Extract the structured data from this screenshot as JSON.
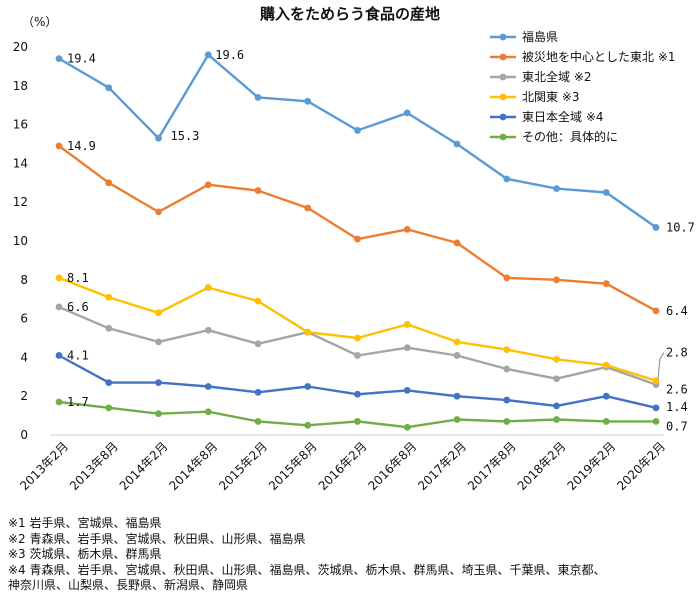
{
  "chart_data": {
    "type": "line",
    "title": "購入をためらう食品の産地",
    "ylabel": "（%）",
    "xlabel": "",
    "ylim": [
      0,
      20
    ],
    "yticks": [
      0,
      2,
      4,
      6,
      8,
      10,
      12,
      14,
      16,
      18,
      20
    ],
    "grid": false,
    "legend_position": "top-right",
    "categories": [
      "2013年2月",
      "2013年8月",
      "2014年2月",
      "2014年8月",
      "2015年2月",
      "2015年8月",
      "2016年2月",
      "2016年8月",
      "2017年2月",
      "2017年8月",
      "2018年2月",
      "2019年2月",
      "2020年2月"
    ],
    "series": [
      {
        "name": "福島県",
        "color": "#5B9BD5",
        "values": [
          19.4,
          17.9,
          15.3,
          19.6,
          17.4,
          17.2,
          15.7,
          16.6,
          15.0,
          13.2,
          12.7,
          12.5,
          10.7
        ],
        "labels": [
          {
            "index": 0,
            "text": "19.4"
          },
          {
            "index": 2,
            "text": "15.3"
          },
          {
            "index": 3,
            "text": "19.6"
          },
          {
            "index": 12,
            "text": "10.7"
          }
        ]
      },
      {
        "name": "被災地を中心とした東北 ※1",
        "color": "#ED7D31",
        "values": [
          14.9,
          13.0,
          11.5,
          12.9,
          12.6,
          11.7,
          10.1,
          10.6,
          9.9,
          8.1,
          8.0,
          7.8,
          6.4
        ],
        "labels": [
          {
            "index": 0,
            "text": "14.9"
          },
          {
            "index": 12,
            "text": "6.4"
          }
        ]
      },
      {
        "name": "東北全域 ※2",
        "color": "#A5A5A5",
        "values": [
          6.6,
          5.5,
          4.8,
          5.4,
          4.7,
          5.3,
          4.1,
          4.5,
          4.1,
          3.4,
          2.9,
          3.5,
          2.6
        ],
        "labels": [
          {
            "index": 0,
            "text": "6.6"
          },
          {
            "index": 12,
            "text": "2.6"
          }
        ]
      },
      {
        "name": "北関東 ※3",
        "color": "#FFC000",
        "values": [
          8.1,
          7.1,
          6.3,
          7.6,
          6.9,
          5.3,
          5.0,
          5.7,
          4.8,
          4.4,
          3.9,
          3.6,
          2.8
        ],
        "labels": [
          {
            "index": 0,
            "text": "8.1"
          },
          {
            "index": 12,
            "text": "2.8"
          }
        ]
      },
      {
        "name": "東日本全域 ※4",
        "color": "#4472C4",
        "values": [
          4.1,
          2.7,
          2.7,
          2.5,
          2.2,
          2.5,
          2.1,
          2.3,
          2.0,
          1.8,
          1.5,
          2.0,
          1.4
        ],
        "labels": [
          {
            "index": 0,
            "text": "4.1"
          },
          {
            "index": 12,
            "text": "1.4"
          }
        ]
      },
      {
        "name": "その他：具体的に",
        "color": "#70AD47",
        "values": [
          1.7,
          1.4,
          1.1,
          1.2,
          0.7,
          0.5,
          0.7,
          0.4,
          0.8,
          0.7,
          0.8,
          0.7,
          0.7
        ],
        "labels": [
          {
            "index": 0,
            "text": "1.7"
          },
          {
            "index": 12,
            "text": "0.7"
          }
        ]
      }
    ]
  },
  "notes": [
    "※1 岩手県、宮城県、福島県",
    "※2 青森県、岩手県、宮城県、秋田県、山形県、福島県",
    "※3 茨城県、栃木県、群馬県",
    "※4 青森県、岩手県、宮城県、秋田県、山形県、福島県、茨城県、栃木県、群馬県、埼玉県、千葉県、東京都、",
    "    神奈川県、山梨県、長野県、新潟県、静岡県"
  ]
}
